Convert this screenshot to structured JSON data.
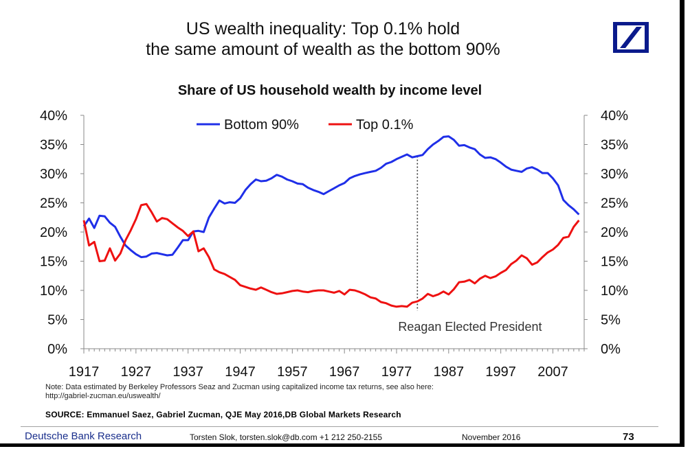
{
  "title_line1": "US wealth inequality: Top 0.1% hold",
  "title_line2": "the same amount of wealth as the bottom 90%",
  "logo": {
    "icon": "deutsche-bank-slash-square-logo",
    "color": "#0a1a8c"
  },
  "chart_data": {
    "type": "line",
    "title": "Share of US household wealth by income level",
    "xlabel": "",
    "ylabel": "",
    "xlim": [
      1917,
      2013
    ],
    "ylim": [
      0,
      40
    ],
    "x_ticks": [
      1917,
      1927,
      1937,
      1947,
      1957,
      1967,
      1977,
      1987,
      1997,
      2007
    ],
    "y_ticks": [
      "0%",
      "5%",
      "10%",
      "15%",
      "20%",
      "25%",
      "30%",
      "35%",
      "40%"
    ],
    "y_ticks_right": [
      "0%",
      "5%",
      "10%",
      "15%",
      "20%",
      "25%",
      "30%",
      "35%",
      "40%"
    ],
    "grid": false,
    "legend_position": "top-center",
    "series": [
      {
        "name": "Bottom 90%",
        "color": "#1f2fe8",
        "x": [
          1917,
          1918,
          1919,
          1920,
          1921,
          1922,
          1923,
          1924,
          1925,
          1926,
          1927,
          1928,
          1929,
          1930,
          1931,
          1932,
          1933,
          1934,
          1935,
          1936,
          1937,
          1938,
          1939,
          1940,
          1941,
          1942,
          1943,
          1944,
          1945,
          1946,
          1947,
          1948,
          1949,
          1950,
          1951,
          1952,
          1953,
          1954,
          1955,
          1956,
          1957,
          1958,
          1959,
          1960,
          1961,
          1962,
          1963,
          1964,
          1965,
          1966,
          1967,
          1968,
          1969,
          1970,
          1971,
          1972,
          1973,
          1974,
          1975,
          1976,
          1977,
          1978,
          1979,
          1980,
          1981,
          1982,
          1983,
          1984,
          1985,
          1986,
          1987,
          1988,
          1989,
          1990,
          1991,
          1992,
          1993,
          1994,
          1995,
          1996,
          1997,
          1998,
          1999,
          2000,
          2001,
          2002,
          2003,
          2004,
          2005,
          2006,
          2007,
          2008,
          2009,
          2010,
          2011,
          2012
        ],
        "values": [
          21.0,
          22.3,
          20.7,
          22.8,
          22.7,
          21.6,
          20.9,
          19.2,
          17.7,
          16.9,
          16.2,
          15.7,
          15.8,
          16.3,
          16.4,
          16.2,
          16.0,
          16.1,
          17.3,
          18.6,
          18.6,
          20.1,
          20.2,
          20.0,
          22.5,
          24.0,
          25.4,
          24.9,
          25.1,
          25.0,
          25.8,
          27.2,
          28.2,
          29.0,
          28.7,
          28.8,
          29.2,
          29.8,
          29.5,
          29.0,
          28.7,
          28.3,
          28.2,
          27.6,
          27.2,
          26.9,
          26.5,
          27.0,
          27.5,
          28.0,
          28.4,
          29.2,
          29.6,
          29.9,
          30.1,
          30.3,
          30.5,
          31.0,
          31.7,
          32.0,
          32.5,
          32.9,
          33.3,
          32.8,
          33.0,
          33.2,
          34.2,
          35.0,
          35.6,
          36.3,
          36.4,
          35.8,
          34.8,
          34.9,
          34.5,
          34.2,
          33.3,
          32.7,
          32.8,
          32.5,
          31.9,
          31.2,
          30.7,
          30.5,
          30.3,
          30.9,
          31.1,
          30.7,
          30.1,
          30.1,
          29.2,
          28.0,
          25.5,
          24.6,
          23.9,
          23.0
        ]
      },
      {
        "name": "Top 0.1%",
        "color": "#ee1111",
        "x": [
          1917,
          1918,
          1919,
          1920,
          1921,
          1922,
          1923,
          1924,
          1925,
          1926,
          1927,
          1928,
          1929,
          1930,
          1931,
          1932,
          1933,
          1934,
          1935,
          1936,
          1937,
          1938,
          1939,
          1940,
          1941,
          1942,
          1943,
          1944,
          1945,
          1946,
          1947,
          1948,
          1949,
          1950,
          1951,
          1952,
          1953,
          1954,
          1955,
          1956,
          1957,
          1958,
          1959,
          1960,
          1961,
          1962,
          1963,
          1964,
          1965,
          1966,
          1967,
          1968,
          1969,
          1970,
          1971,
          1972,
          1973,
          1974,
          1975,
          1976,
          1977,
          1978,
          1979,
          1980,
          1981,
          1982,
          1983,
          1984,
          1985,
          1986,
          1987,
          1988,
          1989,
          1990,
          1991,
          1992,
          1993,
          1994,
          1995,
          1996,
          1997,
          1998,
          1999,
          2000,
          2001,
          2002,
          2003,
          2004,
          2005,
          2006,
          2007,
          2008,
          2009,
          2010,
          2011,
          2012
        ],
        "values": [
          22.0,
          17.7,
          18.3,
          15.0,
          15.1,
          17.2,
          15.1,
          16.3,
          18.6,
          20.3,
          22.2,
          24.6,
          24.8,
          23.4,
          21.8,
          22.4,
          22.2,
          21.5,
          20.8,
          20.2,
          19.3,
          20.1,
          16.7,
          17.2,
          15.7,
          13.6,
          13.1,
          12.8,
          12.3,
          11.8,
          10.9,
          10.6,
          10.3,
          10.1,
          10.5,
          10.1,
          9.7,
          9.4,
          9.5,
          9.7,
          9.9,
          10.0,
          9.8,
          9.7,
          9.9,
          10.0,
          10.0,
          9.8,
          9.6,
          9.9,
          9.3,
          10.1,
          10.0,
          9.7,
          9.3,
          8.8,
          8.6,
          8.0,
          7.8,
          7.4,
          7.2,
          7.3,
          7.2,
          7.9,
          8.1,
          8.6,
          9.4,
          9.0,
          9.3,
          9.8,
          9.3,
          10.2,
          11.4,
          11.5,
          11.8,
          11.2,
          12.0,
          12.5,
          12.1,
          12.4,
          13.0,
          13.5,
          14.5,
          15.1,
          16.0,
          15.5,
          14.4,
          14.8,
          15.7,
          16.5,
          17.0,
          17.8,
          19.0,
          19.2,
          20.9,
          22.0
        ]
      }
    ],
    "annotation": {
      "text": "Reagan Elected President",
      "x": 1981
    }
  },
  "note_line1": "Note: Data estimated by Berkeley Professors Seaz and Zucman using capitalized income tax returns, see also here:",
  "note_line2": "http://gabriel-zucman.eu/uswealth/",
  "source": "SOURCE: Emmanuel Saez, Gabriel Zucman, QJE May 2016,DB Global Markets Research",
  "footer": {
    "brand": "Deutsche Bank Research",
    "author": "Torsten Slok, torsten.slok@db.com  +1 212 250-2155",
    "date": "November 2016",
    "page": "73"
  }
}
